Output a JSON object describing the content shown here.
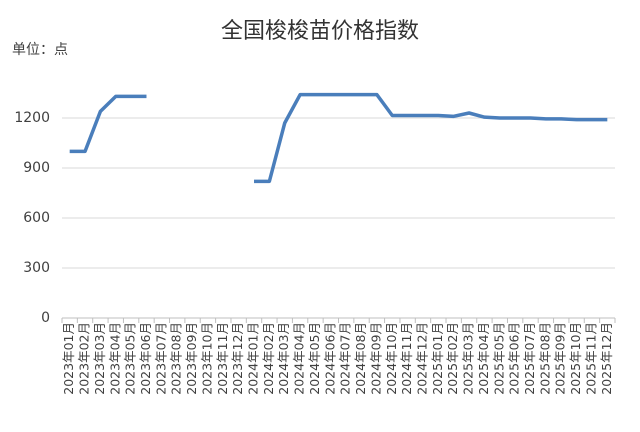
{
  "chart_data": {
    "type": "line",
    "title": "全国梭梭苗价格指数",
    "unit_label": "单位：点",
    "categories": [
      "2023年01月",
      "2023年02月",
      "2023年03月",
      "2023年04月",
      "2023年05月",
      "2023年06月",
      "2023年07月",
      "2023年08月",
      "2023年09月",
      "2023年10月",
      "2023年11月",
      "2023年12月",
      "2024年01月",
      "2024年02月",
      "2024年03月",
      "2024年04月",
      "2024年05月",
      "2024年06月",
      "2024年07月",
      "2024年08月",
      "2024年09月",
      "2024年10月",
      "2024年11月",
      "2024年12月",
      "2025年01月",
      "2025年02月",
      "2025年03月",
      "2025年04月",
      "2025年05月",
      "2025年06月",
      "2025年07月",
      "2025年08月",
      "2025年09月",
      "2025年10月",
      "2025年11月",
      "2025年12月"
    ],
    "values": [
      1000,
      1000,
      1240,
      1330,
      1330,
      1330,
      null,
      null,
      null,
      null,
      null,
      null,
      820,
      820,
      1170,
      1340,
      1340,
      1340,
      1340,
      1340,
      1340,
      1215,
      1215,
      1215,
      1215,
      1210,
      1230,
      1205,
      1200,
      1200,
      1200,
      1195,
      1195,
      1190,
      1190,
      1190
    ],
    "color": "#4a7ebb",
    "ylim": [
      0,
      1500
    ],
    "yticks": [
      0,
      300,
      600,
      900,
      1200
    ],
    "grid": true
  }
}
